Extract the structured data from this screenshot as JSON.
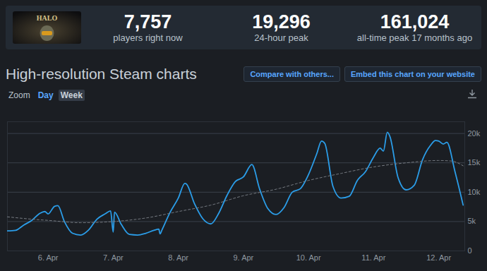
{
  "header": {
    "icon_text": "HALO",
    "stats": [
      {
        "value": "7,757",
        "label": "players right now"
      },
      {
        "value": "19,296",
        "label": "24-hour peak"
      },
      {
        "value": "161,024",
        "label": "all-time peak 17 months ago"
      }
    ]
  },
  "toolbar": {
    "title": "High-resolution Steam charts",
    "buttons": [
      "Compare with others...",
      "Embed this chart on your website"
    ],
    "zoom_label": "Zoom",
    "zoom_options": [
      "Day",
      "Week"
    ]
  },
  "chart_data": {
    "type": "line",
    "series": [
      {
        "color": "#2b9de8",
        "line_style": "solid",
        "x": [
          5.375,
          5.5,
          5.625,
          5.75,
          5.875,
          5.95,
          6.0,
          6.1,
          6.15,
          6.25,
          6.375,
          6.5,
          6.625,
          6.75,
          6.875,
          6.96,
          7.0,
          7.02,
          7.125,
          7.25,
          7.375,
          7.5,
          7.625,
          7.7,
          7.72,
          7.75,
          7.875,
          8.0,
          8.1,
          8.125,
          8.25,
          8.375,
          8.5,
          8.625,
          8.75,
          8.875,
          9.0,
          9.13,
          9.25,
          9.375,
          9.5,
          9.625,
          9.75,
          9.875,
          10.0,
          10.125,
          10.2,
          10.25,
          10.375,
          10.5,
          10.625,
          10.75,
          10.875,
          11.0,
          11.1,
          11.15,
          11.21,
          11.25,
          11.375,
          11.5,
          11.625,
          11.75,
          11.875,
          11.95,
          12.0,
          12.07,
          12.125,
          12.25,
          12.375
        ],
        "values": [
          3400,
          3500,
          4400,
          5200,
          6400,
          6700,
          6300,
          7600,
          7700,
          5000,
          3000,
          2700,
          3600,
          5400,
          6300,
          6800,
          3200,
          6600,
          4500,
          2800,
          2700,
          3000,
          3500,
          3700,
          2900,
          3600,
          6600,
          9000,
          11500,
          11400,
          8000,
          5500,
          4600,
          6500,
          9500,
          11800,
          12600,
          14700,
          10500,
          7200,
          6200,
          7400,
          10000,
          10600,
          13000,
          16500,
          18700,
          18300,
          11000,
          9000,
          9300,
          12000,
          13500,
          16000,
          17500,
          17000,
          20200,
          19500,
          12500,
          10400,
          11200,
          15500,
          18000,
          18800,
          18700,
          18200,
          18500,
          13500,
          7800
        ]
      },
      {
        "color": "#7a7f86",
        "line_style": "dashed",
        "x": [
          5.375,
          5.75,
          6.0,
          6.5,
          7.0,
          7.5,
          8.0,
          8.5,
          9.0,
          9.5,
          10.0,
          10.5,
          11.0,
          11.5,
          12.0,
          12.2,
          12.375
        ],
        "values": [
          5800,
          5400,
          5200,
          4800,
          5000,
          5600,
          6700,
          7800,
          9400,
          10500,
          12000,
          13200,
          14300,
          15000,
          15400,
          15300,
          14500
        ]
      }
    ],
    "xlim": [
      5.375,
      12.4
    ],
    "xticks": [
      {
        "value": 6,
        "label": "6. Apr"
      },
      {
        "value": 7,
        "label": "7. Apr"
      },
      {
        "value": 8,
        "label": "8. Apr"
      },
      {
        "value": 9,
        "label": "9. Apr"
      },
      {
        "value": 10,
        "label": "10. Apr"
      },
      {
        "value": 11,
        "label": "11. Apr"
      },
      {
        "value": 12,
        "label": "12. Apr"
      }
    ],
    "ylim": [
      0,
      22000
    ],
    "yticks": [
      0,
      {
        "value": 5000,
        "label": "5k"
      },
      {
        "value": 10000,
        "label": "10k"
      },
      {
        "value": 15000,
        "label": "15k"
      },
      {
        "value": 20000,
        "label": "20k"
      }
    ],
    "grid": true
  }
}
